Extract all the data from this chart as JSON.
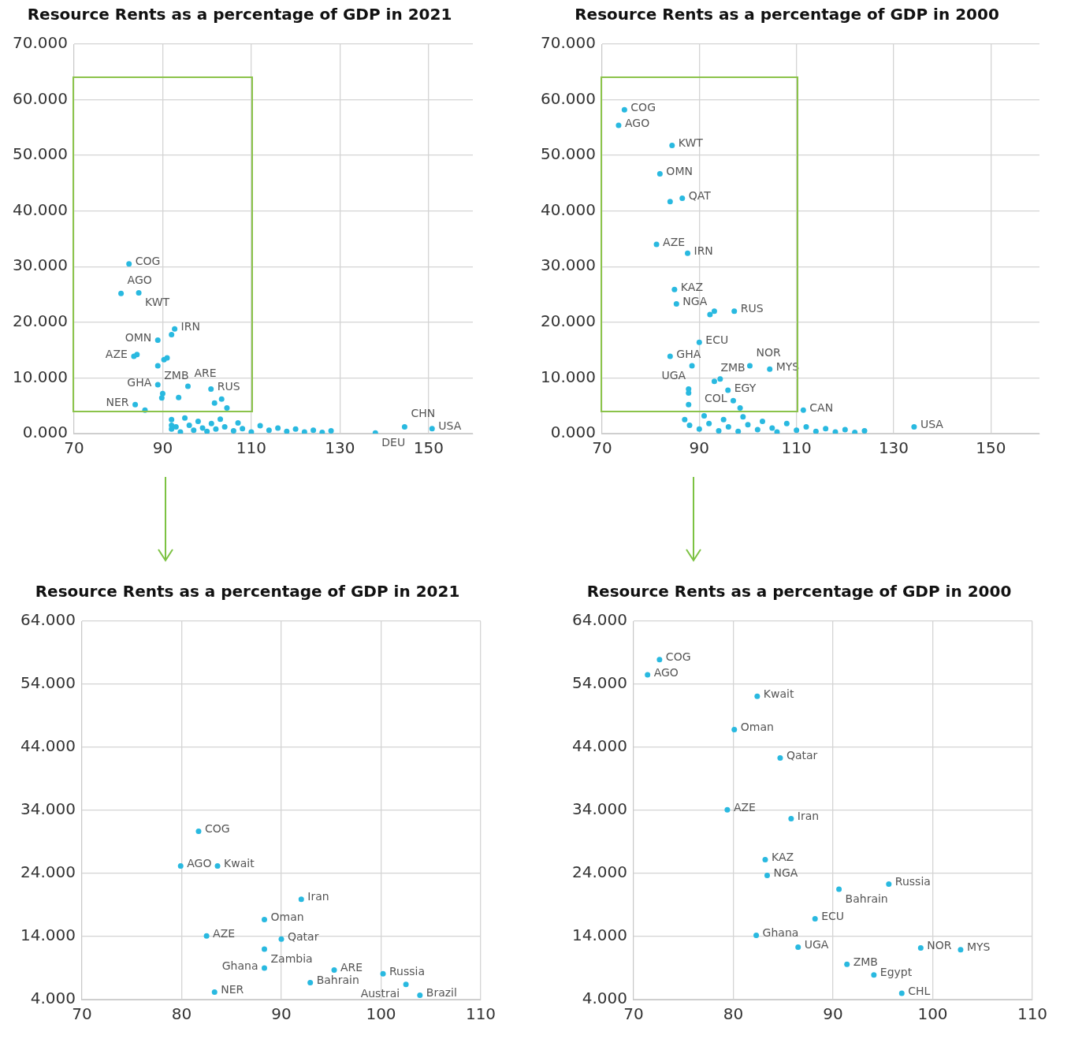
{
  "chart_data": [
    {
      "type": "scatter",
      "title": "Resource Rents as a percentage of GDP in 2021",
      "marker": "circle",
      "grid": true,
      "legend": false,
      "xlim": [
        70,
        160
      ],
      "xticks": [
        70,
        90,
        110,
        130,
        150
      ],
      "ylim": [
        0,
        70
      ],
      "yticks": [
        {
          "value": 0,
          "label": "0.000"
        },
        {
          "value": 10,
          "label": "10.000"
        },
        {
          "value": 20,
          "label": "20.000"
        },
        {
          "value": 30,
          "label": "30.000"
        },
        {
          "value": 40,
          "label": "40.000"
        },
        {
          "value": 50,
          "label": "50.000"
        },
        {
          "value": 60,
          "label": "60.000"
        },
        {
          "value": 70,
          "label": "70.000"
        }
      ],
      "series": [
        {
          "color": "#29b9e0",
          "x": [
            82.4,
            80.6,
            84.6,
            92.7,
            92,
            88.9,
            84.2,
            83.5,
            90.3,
            91,
            88.9,
            88.9,
            95.7,
            100.9,
            90,
            93.6,
            89.8,
            103.3,
            101.7,
            83.8,
            86,
            104.5,
            144.6,
            150.8,
            138,
            92,
            92,
            92,
            93,
            94,
            95,
            96,
            97,
            98,
            99,
            100,
            101,
            102,
            103,
            104,
            106,
            107,
            108,
            110,
            112,
            114,
            116,
            118,
            120,
            122,
            124,
            126,
            128
          ],
          "values": [
            30.5,
            25.2,
            25.3,
            18.8,
            17.8,
            16.8,
            14.2,
            13.9,
            13.3,
            13.6,
            12.2,
            8.8,
            8.5,
            8,
            7.2,
            6.5,
            6.4,
            6.2,
            5.5,
            5.2,
            4.2,
            4.6,
            1.2,
            0.9,
            0.1,
            1.5,
            0.8,
            2.5,
            1.2,
            0.3,
            2.8,
            1.5,
            0.6,
            2.2,
            1,
            0.4,
            1.8,
            0.8,
            2.6,
            1.2,
            0.5,
            1.9,
            0.9,
            0.3,
            1.4,
            0.6,
            1,
            0.4,
            0.8,
            0.3,
            0.6,
            0.2,
            0.5
          ]
        }
      ],
      "annotations": [
        {
          "text": "COG",
          "x": 82.4,
          "y": 30.5
        },
        {
          "text": "AGO",
          "x": 80.6,
          "y": 25.2
        },
        {
          "text": "KWT",
          "x": 84.6,
          "y": 25.3
        },
        {
          "text": "IRN",
          "x": 92.7,
          "y": 18.8
        },
        {
          "text": "OMN",
          "x": 88.9,
          "y": 16.8
        },
        {
          "text": "AZE",
          "x": 83.5,
          "y": 13.9
        },
        {
          "text": "ZMB",
          "x": 88.9,
          "y": 12.2
        },
        {
          "text": "GHA",
          "x": 88.9,
          "y": 8.8
        },
        {
          "text": "ARE",
          "x": 95.7,
          "y": 8.5
        },
        {
          "text": "RUS",
          "x": 100.9,
          "y": 8
        },
        {
          "text": "NER",
          "x": 83.8,
          "y": 5.2
        },
        {
          "text": "CHN",
          "x": 144.6,
          "y": 1.2
        },
        {
          "text": "USA",
          "x": 150.8,
          "y": 0.9
        },
        {
          "text": "DEU",
          "x": 138,
          "y": 0.1
        }
      ]
    },
    {
      "type": "scatter",
      "title": "Resource Rents as a percentage of GDP in 2000",
      "marker": "circle",
      "grid": true,
      "legend": false,
      "xlim": [
        70,
        160
      ],
      "xticks": [
        70,
        90,
        110,
        130,
        150
      ],
      "ylim": [
        0,
        70
      ],
      "yticks": [
        {
          "value": 0,
          "label": "0.000"
        },
        {
          "value": 10,
          "label": "10.000"
        },
        {
          "value": 20,
          "label": "20.000"
        },
        {
          "value": 30,
          "label": "30.000"
        },
        {
          "value": 40,
          "label": "40.000"
        },
        {
          "value": 50,
          "label": "50.000"
        },
        {
          "value": 60,
          "label": "60.000"
        },
        {
          "value": 70,
          "label": "70.000"
        }
      ],
      "series": [
        {
          "color": "#29b9e0",
          "x": [
            74.6,
            73.4,
            84.4,
            81.9,
            84,
            86.5,
            81.2,
            87.6,
            84.9,
            85.3,
            92.2,
            93.1,
            97.2,
            90,
            84,
            88.5,
            100.4,
            104.5,
            94.3,
            93.1,
            87.8,
            87.8,
            95.9,
            97,
            87.8,
            98.4,
            111.4,
            134.2,
            87,
            88,
            90,
            91,
            92,
            94,
            95,
            96,
            98,
            99,
            100,
            102,
            103,
            105,
            106,
            108,
            110,
            112,
            114,
            116,
            118,
            120,
            122,
            124
          ],
          "values": [
            58.2,
            55.4,
            51.8,
            46.7,
            41.7,
            42.3,
            34,
            32.4,
            25.9,
            23.3,
            21.4,
            22,
            22,
            16.4,
            13.9,
            12.2,
            12.2,
            11.6,
            9.8,
            9.4,
            8,
            7.3,
            7.8,
            5.9,
            5.2,
            4.6,
            4.2,
            1.2,
            2.5,
            1.5,
            0.8,
            3.2,
            1.8,
            0.5,
            2.5,
            1.2,
            0.4,
            3,
            1.6,
            0.7,
            2.2,
            1,
            0.3,
            1.8,
            0.6,
            1.2,
            0.4,
            0.9,
            0.3,
            0.7,
            0.2,
            0.5
          ]
        }
      ],
      "annotations": [
        {
          "text": "COG",
          "x": 74.6,
          "y": 58.2
        },
        {
          "text": "AGO",
          "x": 73.4,
          "y": 55.4
        },
        {
          "text": "KWT",
          "x": 84.4,
          "y": 51.8
        },
        {
          "text": "OMN",
          "x": 81.9,
          "y": 46.7
        },
        {
          "text": "QAT",
          "x": 86.5,
          "y": 42.3
        },
        {
          "text": "AZE",
          "x": 81.2,
          "y": 34
        },
        {
          "text": "IRN",
          "x": 87.6,
          "y": 32.4
        },
        {
          "text": "KAZ",
          "x": 84.9,
          "y": 25.9
        },
        {
          "text": "NGA",
          "x": 85.3,
          "y": 23.3
        },
        {
          "text": "RUS",
          "x": 97.2,
          "y": 22
        },
        {
          "text": "ECU",
          "x": 90,
          "y": 16.4
        },
        {
          "text": "GHA",
          "x": 84,
          "y": 13.9
        },
        {
          "text": "UGA",
          "x": 88.5,
          "y": 12.2
        },
        {
          "text": "NOR",
          "x": 100.4,
          "y": 12.2
        },
        {
          "text": "MYS",
          "x": 104.5,
          "y": 11.6
        },
        {
          "text": "ZMB",
          "x": 93.1,
          "y": 9.4
        },
        {
          "text": "EGY",
          "x": 95.9,
          "y": 7.8
        },
        {
          "text": "COL",
          "x": 97,
          "y": 5.9
        },
        {
          "text": "CAN",
          "x": 111.4,
          "y": 4.2
        },
        {
          "text": "USA",
          "x": 134.2,
          "y": 1.2
        }
      ]
    },
    {
      "type": "scatter",
      "title": "Resource Rents as a percentage of GDP in 2021",
      "marker": "circle",
      "grid": true,
      "legend": false,
      "xlim": [
        70,
        110
      ],
      "xticks": [
        70,
        80,
        90,
        100,
        110
      ],
      "ylim": [
        4,
        64
      ],
      "yticks": [
        {
          "value": 4,
          "label": "4.000"
        },
        {
          "value": 14,
          "label": "14.000"
        },
        {
          "value": 24,
          "label": "24.000"
        },
        {
          "value": 34,
          "label": "34.000"
        },
        {
          "value": 44,
          "label": "44.000"
        },
        {
          "value": 54,
          "label": "54.000"
        },
        {
          "value": 64,
          "label": "64.000"
        }
      ],
      "series": [
        {
          "color": "#29b9e0",
          "x": [
            81.7,
            79.9,
            83.6,
            92,
            88.3,
            82.5,
            90,
            88.3,
            88.3,
            95.3,
            92.9,
            100.2,
            102.5,
            103.9,
            83.3
          ],
          "values": [
            30.7,
            25.2,
            25.2,
            19.9,
            16.7,
            14.1,
            13.6,
            12,
            9,
            8.7,
            6.7,
            8.1,
            6.4,
            4.7,
            5.2
          ]
        }
      ],
      "annotations": [
        {
          "text": "COG",
          "x": 81.7,
          "y": 30.7
        },
        {
          "text": "AGO",
          "x": 79.9,
          "y": 25.2
        },
        {
          "text": "Kwait",
          "x": 83.6,
          "y": 25.2
        },
        {
          "text": "Iran",
          "x": 92,
          "y": 19.9
        },
        {
          "text": "Oman",
          "x": 88.3,
          "y": 16.7
        },
        {
          "text": "AZE",
          "x": 82.5,
          "y": 14.1
        },
        {
          "text": "Qatar",
          "x": 90,
          "y": 13.6
        },
        {
          "text": "Zambia",
          "x": 88.3,
          "y": 12
        },
        {
          "text": "Ghana",
          "x": 88.3,
          "y": 9
        },
        {
          "text": "ARE",
          "x": 95.3,
          "y": 8.7
        },
        {
          "text": "Bahrain",
          "x": 92.9,
          "y": 6.7
        },
        {
          "text": "Russia",
          "x": 100.2,
          "y": 8.1
        },
        {
          "text": "Austrai",
          "x": 102.5,
          "y": 6.4
        },
        {
          "text": "Brazil",
          "x": 103.9,
          "y": 4.7
        },
        {
          "text": "NER",
          "x": 83.3,
          "y": 5.2
        }
      ]
    },
    {
      "type": "scatter",
      "title": "Resource Rents as a percentage of GDP in 2000",
      "marker": "circle",
      "grid": true,
      "legend": false,
      "xlim": [
        70,
        110
      ],
      "xticks": [
        70,
        80,
        90,
        100,
        110
      ],
      "ylim": [
        4,
        64
      ],
      "yticks": [
        {
          "value": 4,
          "label": "4.000"
        },
        {
          "value": 14,
          "label": "14.000"
        },
        {
          "value": 24,
          "label": "24.000"
        },
        {
          "value": 34,
          "label": "34.000"
        },
        {
          "value": 44,
          "label": "44.000"
        },
        {
          "value": 54,
          "label": "54.000"
        },
        {
          "value": 64,
          "label": "64.000"
        }
      ],
      "series": [
        {
          "color": "#29b9e0",
          "x": [
            72.6,
            71.4,
            82.4,
            80.1,
            84.7,
            79.4,
            85.8,
            83.2,
            83.4,
            90.6,
            95.6,
            88.2,
            82.3,
            86.5,
            98.8,
            102.8,
            91.4,
            94.1,
            96.9
          ],
          "values": [
            57.9,
            55.5,
            52.1,
            46.8,
            42.3,
            34.1,
            32.7,
            26.2,
            23.7,
            21.5,
            22.3,
            16.8,
            14.2,
            12.3,
            12.2,
            11.9,
            9.6,
            7.9,
            5
          ]
        }
      ],
      "annotations": [
        {
          "text": "COG",
          "x": 72.6,
          "y": 57.9
        },
        {
          "text": "AGO",
          "x": 71.4,
          "y": 55.5
        },
        {
          "text": "Kwait",
          "x": 82.4,
          "y": 52.1
        },
        {
          "text": "Oman",
          "x": 80.1,
          "y": 46.8
        },
        {
          "text": "Qatar",
          "x": 84.7,
          "y": 42.3
        },
        {
          "text": "AZE",
          "x": 79.4,
          "y": 34.1
        },
        {
          "text": "Iran",
          "x": 85.8,
          "y": 32.7
        },
        {
          "text": "KAZ",
          "x": 83.2,
          "y": 26.2
        },
        {
          "text": "NGA",
          "x": 83.4,
          "y": 23.7
        },
        {
          "text": "Bahrain",
          "x": 90.6,
          "y": 21.5
        },
        {
          "text": "Russia",
          "x": 95.6,
          "y": 22.3
        },
        {
          "text": "ECU",
          "x": 88.2,
          "y": 16.8
        },
        {
          "text": "Ghana",
          "x": 82.3,
          "y": 14.2
        },
        {
          "text": "UGA",
          "x": 86.5,
          "y": 12.3
        },
        {
          "text": "NOR",
          "x": 98.8,
          "y": 12.2
        },
        {
          "text": "MYS",
          "x": 102.8,
          "y": 11.9
        },
        {
          "text": "ZMB",
          "x": 91.4,
          "y": 9.6
        },
        {
          "text": "Egypt",
          "x": 94.1,
          "y": 7.9
        },
        {
          "text": "CHL",
          "x": 96.9,
          "y": 5
        }
      ]
    }
  ]
}
